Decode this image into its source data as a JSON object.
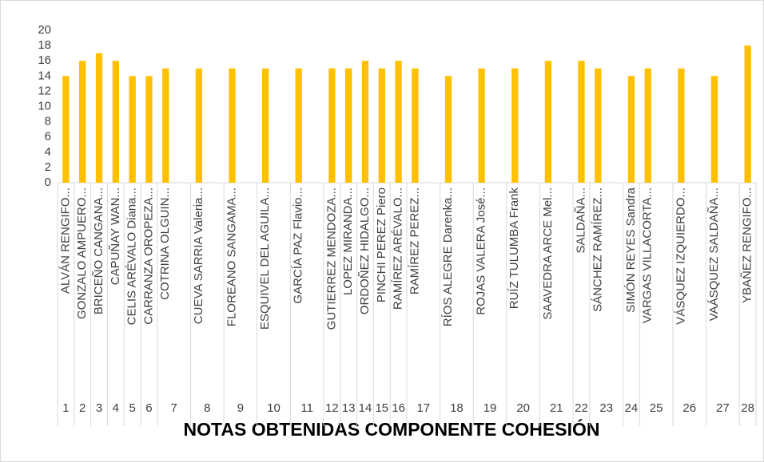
{
  "chart_data": {
    "type": "bar",
    "title": "NOTAS OBTENIDAS COMPONENTE COHESIÓN",
    "categories": [
      "ALVÁN RENGIFO...",
      "GONZALO AMPUERO...",
      "BRICEÑO CANGANA...",
      "CAPUÑAY WAN...",
      "CELIS ARÉVALO Diana...",
      "CARRANZA OROPEZA...",
      "COTRINA OLGUIN...",
      null,
      "CUEVA SARRIA Valeria...",
      null,
      "FLOREANO SANGAMA...",
      null,
      "ESQUIVEL DEL AGUILA...",
      null,
      "GARCÍA PAZ Flavio...",
      null,
      "GUTIERREZ MENDOZA...",
      "LOPEZ MIRANDA...",
      "ORDOÑEZ HIDALGO...",
      "PINCHI PEREZ Piero",
      "RAMÍREZ ARÉVALO...",
      "RAMÍREZ PEREZ...",
      null,
      "RÍOS ALEGRE Darenka...",
      null,
      "ROJAS VALERA José...",
      null,
      "RUÍZ TULUMBA Frank",
      null,
      "SAAVEDRA ARCE Mel...",
      null,
      "SALDAÑA...",
      "SÁNCHEZ RAMÍREZ...",
      null,
      "SIMÓN REYES Sandra",
      "VARGAS VILLACORTA...",
      null,
      "VÁSQUEZ IZQUIERDO...",
      null,
      "VAÁSQUEZ SALDAÑA...",
      null,
      "YBAÑEZ RENGIFO..."
    ],
    "values": [
      14,
      16,
      17,
      16,
      14,
      14,
      15,
      null,
      15,
      null,
      15,
      null,
      15,
      null,
      15,
      null,
      15,
      15,
      16,
      15,
      16,
      15,
      null,
      14,
      null,
      15,
      null,
      15,
      null,
      16,
      null,
      16,
      15,
      null,
      14,
      15,
      null,
      15,
      null,
      14,
      null,
      18
    ],
    "group_labels": [
      "1",
      "2",
      "3",
      "4",
      "5",
      "6",
      "7",
      "8",
      "9",
      "10",
      "11",
      "12",
      "13",
      "14",
      "15",
      "16",
      "17",
      "18",
      "19",
      "20",
      "21",
      "22",
      "23",
      "24",
      "25",
      "26",
      "27",
      "28"
    ],
    "color": "#ffc000",
    "ylim": [
      0,
      20
    ],
    "yticks": [
      0,
      2,
      4,
      6,
      8,
      10,
      12,
      14,
      16,
      18,
      20
    ],
    "grid": false
  }
}
